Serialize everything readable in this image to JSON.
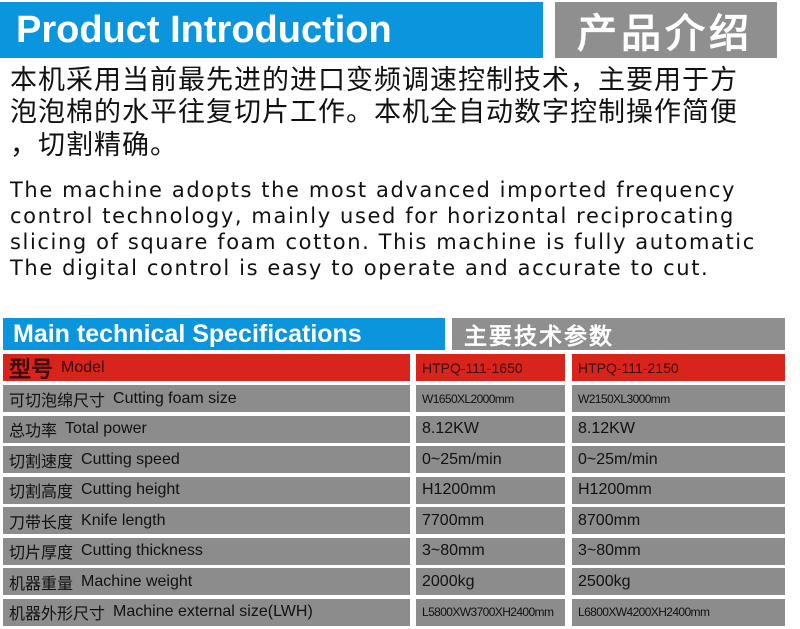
{
  "intro": {
    "title_en": "Product Introduction",
    "title_zh": "产品介绍",
    "zh_lines": [
      "本机采用当前最先进的进口变频调速控制技术，主要用于方",
      "泡泡棉的水平往复切片工作。本机全自动数字控制操作简便",
      "，切割精确。"
    ],
    "en_lines": [
      "The machine adopts the most advanced imported frequency",
      "control technology, mainly used for horizontal reciprocating",
      "slicing of square foam cotton. This machine is fully automatic",
      "The digital control is easy to operate and accurate to cut."
    ]
  },
  "specs": {
    "title_en": "Main technical Specifications",
    "title_zh": "主要技术参数",
    "header": {
      "label_zh": "型号",
      "label_en": "Model",
      "models": [
        "HTPQ-111-1650",
        "HTPQ-111-2150"
      ]
    },
    "rows": [
      {
        "zh": "可切泡绵尺寸",
        "en": "Cutting foam size",
        "values": [
          "W1650XL2000mm",
          "W2150XL3000mm"
        ]
      },
      {
        "zh": "总功率",
        "en": "Total power",
        "values": [
          "8.12KW",
          "8.12KW"
        ]
      },
      {
        "zh": "切割速度",
        "en": "Cutting speed",
        "values": [
          "0~25m/min",
          "0~25m/min"
        ]
      },
      {
        "zh": "切割高度",
        "en": "Cutting height",
        "values": [
          "H1200mm",
          "H1200mm"
        ]
      },
      {
        "zh": "刀带长度",
        "en": "Knife length",
        "values": [
          "7700mm",
          "8700mm"
        ]
      },
      {
        "zh": "切片厚度",
        "en": "Cutting thickness",
        "values": [
          "3~80mm",
          "3~80mm"
        ]
      },
      {
        "zh": "机器重量",
        "en": "Machine weight",
        "values": [
          "2000kg",
          "2500kg"
        ]
      },
      {
        "zh": "机器外形尺寸",
        "en": "Machine external size(LWH)",
        "values": [
          "L5800XW3700XH2400mm",
          "L6800XW4200XH2400mm"
        ]
      }
    ]
  },
  "colors": {
    "blue": "#0a95dc",
    "gray": "#8f8f8f",
    "red": "#d9241c"
  }
}
